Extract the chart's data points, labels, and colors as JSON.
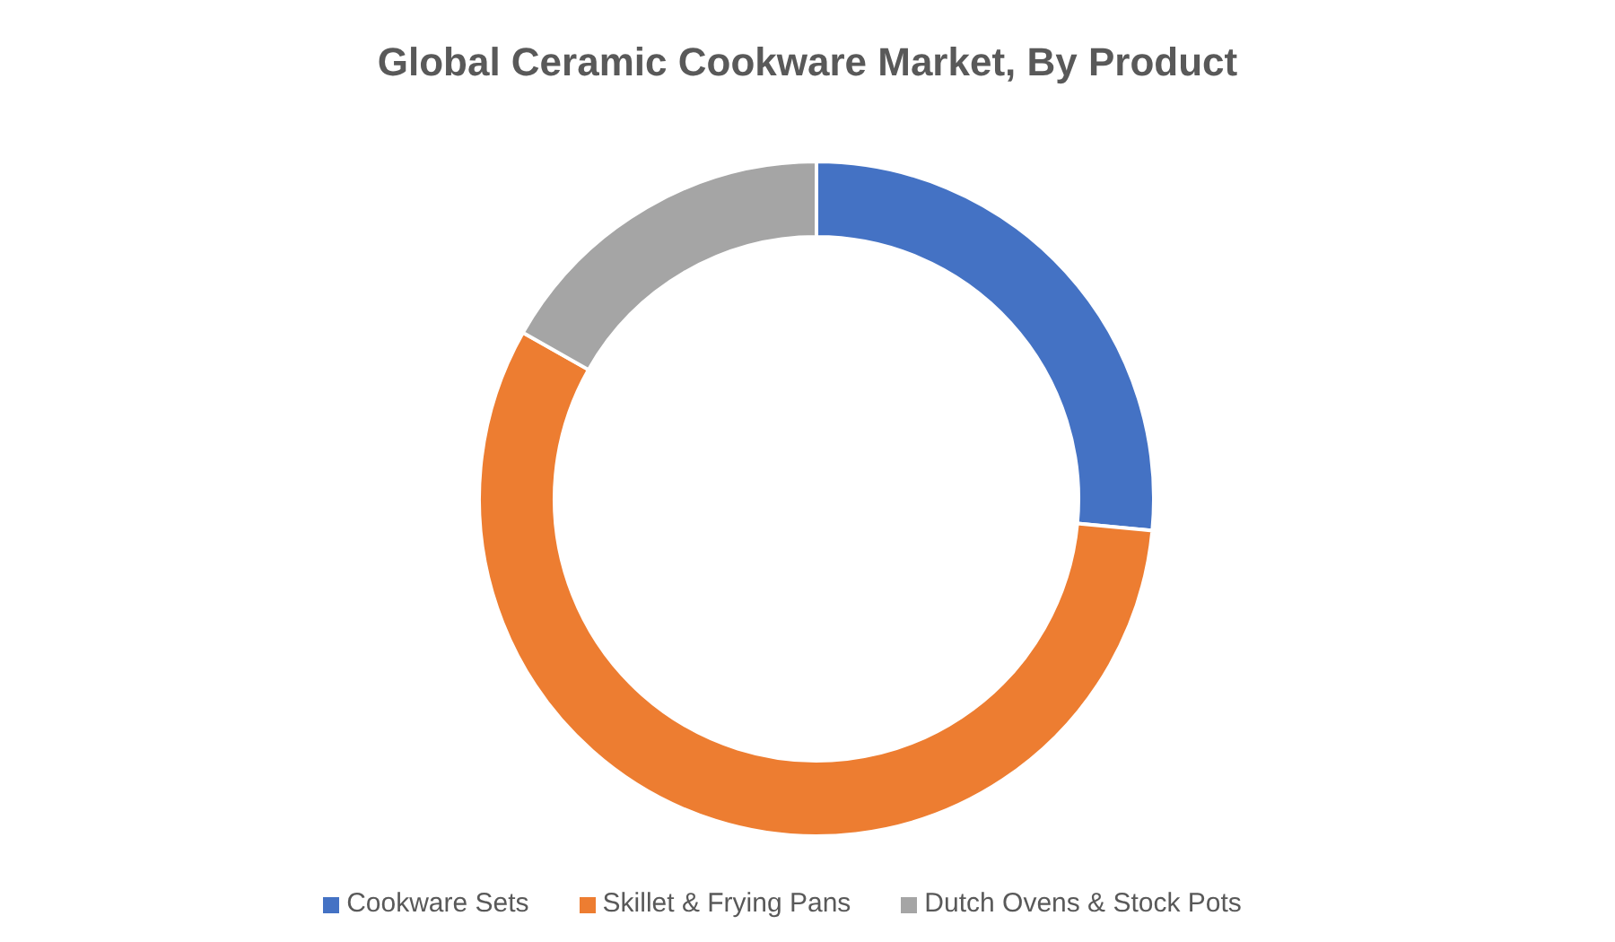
{
  "chart_data": {
    "type": "donut",
    "title": "Global Ceramic Cookware Market, By Product",
    "categories": [
      "Cookware Sets",
      "Skillet & Frying Pans",
      "Dutch Ovens & Stock Pots"
    ],
    "values": [
      26.5,
      56.7,
      16.8
    ],
    "colors": [
      "#4472c4",
      "#ed7d31",
      "#a5a5a5"
    ],
    "legend": "bottom"
  }
}
